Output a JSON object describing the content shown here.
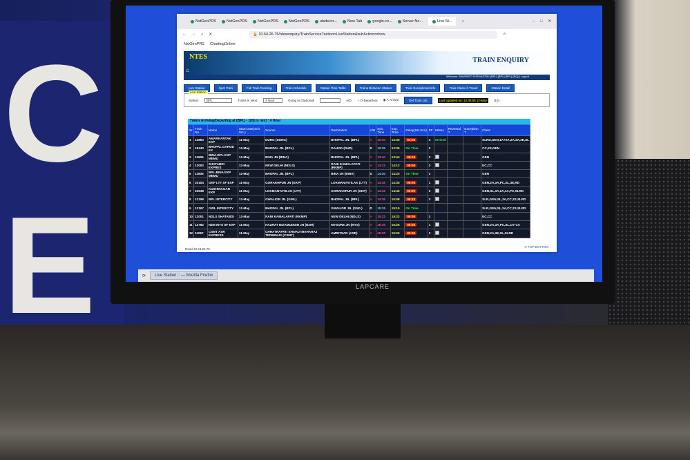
{
  "browser": {
    "tabs": [
      "NxtGenPRS",
      "NxtGenPRS",
      "NxtGenPRS",
      "NxtGenPRS",
      "utsdevcr...",
      "New Tab",
      "google.co...",
      "Server No...",
      "Live St..."
    ],
    "url": "10.64.26.75/ntesenquiry/TrainService?action=LiveStation&subAction=show",
    "bookmarks": [
      "NxtGenPRS",
      "ChartingOnline"
    ],
    "status": "Read 10.64.26.75"
  },
  "page": {
    "logo": "NTES",
    "title": "TRAIN ENQUIRY",
    "welcome": "Welcome: NAVNEET SHRIVASTAV [BPL] [BPL] [BPL] [EQ] | Logout",
    "nav": [
      "Live Station",
      "Spot Train",
      "Full Train Running",
      "Train Schedule",
      "Station Time Table",
      "Trains Between Station",
      "Train Exceptional Info",
      "Train Class of Travel",
      "Station Detail"
    ],
    "live_station": {
      "legend": "Live Station",
      "station_label": "Station:",
      "station_value": "BPL",
      "next_label": "Trains in Next:",
      "next_value": "4 Hour",
      "going_label": "Going to (Optional)",
      "ad_label": "A/D:",
      "opt_d": "D-Departure",
      "opt_a": "A-Arrival",
      "get_btn": "Get Train List",
      "updated": "Last Updated on: 12:38:56 12-May",
      "updated_extra": "(10)"
    },
    "table_caption": "Trains Arriving/Departing at (BPL) - [20] in next : 4 Hour",
    "columns": [
      "Sr",
      "Train No.",
      "Name",
      "Start Date(Sch. Src.)",
      "Source",
      "Destination",
      "A/D",
      "Sch. Time",
      "Exp. Time",
      "Delay(HH:mm)",
      "PF",
      "Status",
      "Reversal ?",
      "Exception ?",
      "Class"
    ],
    "rows": [
      [
        "1",
        "12853",
        "AMARKANTAK EXP",
        "11-May",
        "DURG (DURG)",
        "BHOPAL JN. (BPL)",
        "A",
        "10:30",
        "12:35",
        "02:05",
        "4",
        "Arrived",
        "",
        "",
        "SLRD,GEN,1A+2A,2A,3A,3E,SL"
      ],
      [
        "2",
        "19340",
        "BHOPAL DAHOD EX",
        "12-May",
        "BHOPAL JN. (BPL)",
        "DAHOD (DHD)",
        "D",
        "12:35",
        "12:35",
        "On Time",
        "3",
        "",
        "",
        "",
        "CC,2S,GEN"
      ],
      [
        "3",
        "11606",
        "BINA-BPL EXP MEMU",
        "12-May",
        "BINA JN (BINA)",
        "BHOPAL JN. (BPL)",
        "A",
        "13:40",
        "13:44",
        "00:04",
        "3",
        "",
        "",
        "",
        "GEN"
      ],
      [
        "4",
        "12002",
        "SHATABDI EXPRES",
        "12-May",
        "NEW DELHI (NDLS)",
        "RANI KAMALAPATI (RKMP)",
        "A",
        "14:12",
        "14:12",
        "00:00",
        "3",
        "",
        "",
        "",
        "EC,CC"
      ],
      [
        "5",
        "11605",
        "BPL-BINA EXP MEMU",
        "12-May",
        "BHOPAL JN. (BPL)",
        "BINA JN (BINA)",
        "D",
        "14:20",
        "14:20",
        "On Time",
        "3",
        "",
        "",
        "",
        "GEN"
      ],
      [
        "6",
        "20104",
        "GKP LTT SF EXP",
        "11-May",
        "GORAKHPUR JN (GKP)",
        "LOKMANYATILAK (LTT)",
        "A",
        "14:35",
        "14:35",
        "00:00",
        "1",
        "",
        "",
        "",
        "GEN,2A,3A,PC,SL,3E,RD"
      ],
      [
        "7",
        "22538",
        "KUSHINAGAR EXP",
        "11-May",
        "LOKMANYATILAK (LTT)",
        "GORAKHPUR JN (GKP)",
        "A",
        "14:45",
        "14:45",
        "00:00",
        "3",
        "",
        "",
        "",
        "GEN,SL,3A,2A,1A,PC,SLRD"
      ],
      [
        "8",
        "12198",
        "BPL INTERCITY",
        "12-May",
        "GWALIOR JN. (GWL)",
        "BHOPAL JN. (BPL)",
        "A",
        "14:35",
        "15:08",
        "00:33",
        "3",
        "",
        "",
        "",
        "SLR,GEN,SL,3A,CC,2S,SLRD"
      ],
      [
        "9",
        "12197",
        "GWL INTERCITY",
        "12-May",
        "BHOPAL JN. (BPL)",
        "GWALIOR JN. (GWL)",
        "D",
        "15:15",
        "15:15",
        "On Time",
        "",
        "",
        "",
        "",
        "SLR,GEN,SL,3A,CC,2S,SLRD"
      ],
      [
        "10",
        "12001",
        "NDLS SHATABDI",
        "12-May",
        "RANI KAMALAPATI (RKMP)",
        "NEW DELHI (NDLS)",
        "A",
        "15:22",
        "15:22",
        "00:00",
        "3",
        "",
        "",
        "",
        "EC,CC"
      ],
      [
        "11",
        "12782",
        "NZM MYS SF EXP",
        "11-May",
        "HAZRAT NIZAMUDDIN JN (NZM)",
        "MYSORE JN (MYS)",
        "A",
        "15:25",
        "15:25",
        "00:00",
        "1",
        "",
        "",
        "",
        "GEN,2A,3A,PC,SL,1A+2A"
      ],
      [
        "12",
        "11057",
        "CSMT ASR EXPRESS",
        "11-May",
        "CHHATRAPATI SHIVAJI MAHARAJ TERMINUS (CSMT)",
        "AMRITSAR (ASR)",
        "A",
        "15:25",
        "15:25",
        "00:00",
        "3",
        "",
        "",
        "",
        "GEN,2A,3E,SL,SLRD"
      ]
    ],
    "status_icon_rows": [
      3,
      4,
      6,
      7,
      8,
      11,
      12
    ],
    "top_label": "TOP",
    "bottom_label": "BOTTOM"
  },
  "taskbar": {
    "item": "Live Station :: — Mozilla Firefox"
  },
  "monitor": {
    "brand": "LAPCARE"
  },
  "colors": {
    "desktop": "#1f4fd8",
    "header_blue": "#1548d8",
    "caption": "#29b6e8",
    "delay": "#e01010",
    "ontime": "#33ff33"
  }
}
